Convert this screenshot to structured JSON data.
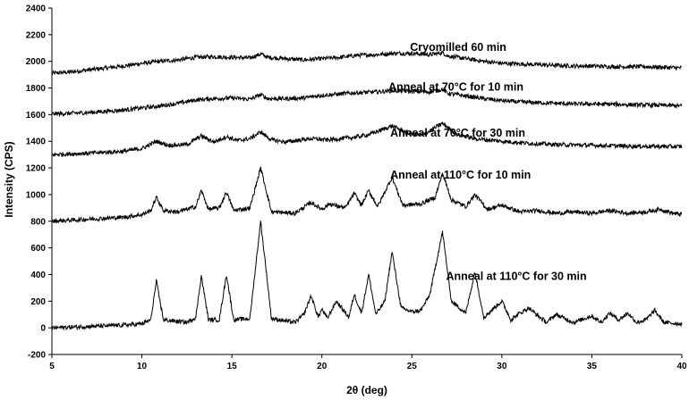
{
  "chart_data": {
    "type": "line",
    "title": "",
    "xlabel": "2θ (deg)",
    "ylabel": "Intensity (CPS)",
    "xlim": [
      5,
      40
    ],
    "ylim": [
      -200,
      2400
    ],
    "xticks": [
      5,
      10,
      15,
      20,
      25,
      30,
      35,
      40
    ],
    "yticks": [
      -200,
      0,
      200,
      400,
      600,
      800,
      1000,
      1200,
      1400,
      1600,
      1800,
      2000,
      2200,
      2400
    ],
    "grid": false,
    "legend": "none",
    "series": [
      {
        "label": "Cryomilled 60 min",
        "label_at": [
          24.9,
          2080
        ],
        "x": [
          5,
          6,
          7,
          8,
          9,
          10,
          11,
          12,
          13,
          14,
          15,
          16,
          16.6,
          17,
          18,
          19,
          20,
          21,
          22,
          23,
          24,
          25,
          26,
          26.7,
          27,
          28,
          29,
          30,
          31,
          32,
          33,
          34,
          35,
          36,
          37,
          38,
          39,
          40
        ],
        "y": [
          1910,
          1920,
          1935,
          1950,
          1965,
          1985,
          2000,
          2010,
          2030,
          2035,
          2030,
          2025,
          2055,
          2030,
          2020,
          2010,
          2020,
          2030,
          2045,
          2050,
          2060,
          2060,
          2050,
          2065,
          2040,
          2020,
          2000,
          1985,
          1980,
          1975,
          1970,
          1965,
          1965,
          1960,
          1960,
          1960,
          1955,
          1950
        ]
      },
      {
        "label": "Anneal at 70°C for 10 min",
        "label_at": [
          23.7,
          1780
        ],
        "x": [
          5,
          6,
          7,
          8,
          9,
          10,
          11,
          12,
          13,
          14,
          15,
          16,
          16.6,
          17,
          18,
          19,
          20,
          21,
          22,
          23,
          24,
          25,
          26,
          26.7,
          27,
          28,
          29,
          30,
          31,
          32,
          33,
          34,
          35,
          36,
          37,
          38,
          39,
          40
        ],
        "y": [
          1605,
          1610,
          1615,
          1625,
          1635,
          1650,
          1665,
          1685,
          1710,
          1720,
          1725,
          1715,
          1750,
          1720,
          1720,
          1725,
          1745,
          1755,
          1765,
          1770,
          1780,
          1775,
          1770,
          1790,
          1760,
          1740,
          1720,
          1705,
          1695,
          1690,
          1685,
          1680,
          1680,
          1678,
          1675,
          1672,
          1670,
          1665
        ]
      },
      {
        "label": "Anneal at 70°C for 30 min",
        "label_at": [
          23.8,
          1435
        ],
        "x": [
          5,
          7,
          9,
          10,
          10.8,
          11.5,
          12.5,
          13.3,
          14,
          14.7,
          15.3,
          16,
          16.6,
          17.2,
          18,
          19.4,
          20.3,
          21.8,
          22.6,
          23.9,
          24.8,
          25.6,
          26.7,
          27.5,
          28.5,
          30,
          31.5,
          33,
          35,
          36.5,
          38,
          40
        ],
        "y": [
          1300,
          1310,
          1325,
          1345,
          1400,
          1370,
          1375,
          1440,
          1395,
          1435,
          1405,
          1420,
          1470,
          1410,
          1395,
          1420,
          1410,
          1430,
          1450,
          1515,
          1460,
          1445,
          1535,
          1450,
          1420,
          1400,
          1385,
          1375,
          1370,
          1365,
          1362,
          1360
        ]
      },
      {
        "label": "Anneal at 110°C for 10 min",
        "label_at": [
          23.8,
          1120
        ],
        "x": [
          5,
          7,
          9,
          10,
          10.5,
          10.8,
          11.2,
          12,
          13,
          13.3,
          13.7,
          14.3,
          14.7,
          15.1,
          16,
          16.6,
          17.2,
          18.5,
          19.4,
          20,
          20.4,
          21.3,
          21.8,
          22.2,
          22.6,
          23.1,
          23.9,
          24.5,
          25.5,
          26.3,
          26.7,
          27.2,
          28,
          28.5,
          29.2,
          30,
          31,
          32,
          33,
          34,
          35,
          36,
          37,
          38,
          38.8,
          39.5,
          40
        ],
        "y": [
          800,
          815,
          830,
          850,
          880,
          980,
          880,
          870,
          910,
          1030,
          890,
          900,
          1020,
          880,
          900,
          1200,
          870,
          860,
          940,
          890,
          930,
          900,
          1010,
          920,
          1030,
          910,
          1130,
          920,
          930,
          980,
          1160,
          960,
          910,
          1000,
          890,
          920,
          870,
          880,
          860,
          870,
          860,
          880,
          860,
          870,
          890,
          860,
          850
        ]
      },
      {
        "label": "Anneal at 110°C for 30 min",
        "label_at": [
          26.9,
          360
        ],
        "x": [
          5,
          7,
          9,
          10,
          10.5,
          10.8,
          11.2,
          12.5,
          13,
          13.3,
          13.7,
          14.3,
          14.7,
          15.1,
          16,
          16.6,
          17.2,
          18.5,
          19,
          19.4,
          19.8,
          20,
          20.3,
          20.8,
          21.5,
          21.8,
          22.2,
          22.6,
          23,
          23.5,
          23.9,
          24.4,
          25,
          25.5,
          26,
          26.7,
          27.2,
          28,
          28.5,
          29,
          30,
          30.5,
          31,
          31.5,
          32,
          32.5,
          33,
          34,
          35,
          35.5,
          36,
          36.5,
          37,
          37.5,
          38,
          38.5,
          39,
          40
        ],
        "y": [
          0,
          10,
          20,
          30,
          60,
          350,
          60,
          40,
          80,
          390,
          60,
          60,
          400,
          60,
          70,
          800,
          70,
          40,
          100,
          240,
          80,
          140,
          70,
          200,
          80,
          250,
          110,
          400,
          100,
          200,
          570,
          150,
          120,
          130,
          250,
          720,
          200,
          110,
          420,
          80,
          200,
          60,
          110,
          150,
          90,
          40,
          100,
          40,
          90,
          40,
          110,
          60,
          110,
          40,
          60,
          130,
          40,
          30
        ]
      }
    ]
  }
}
